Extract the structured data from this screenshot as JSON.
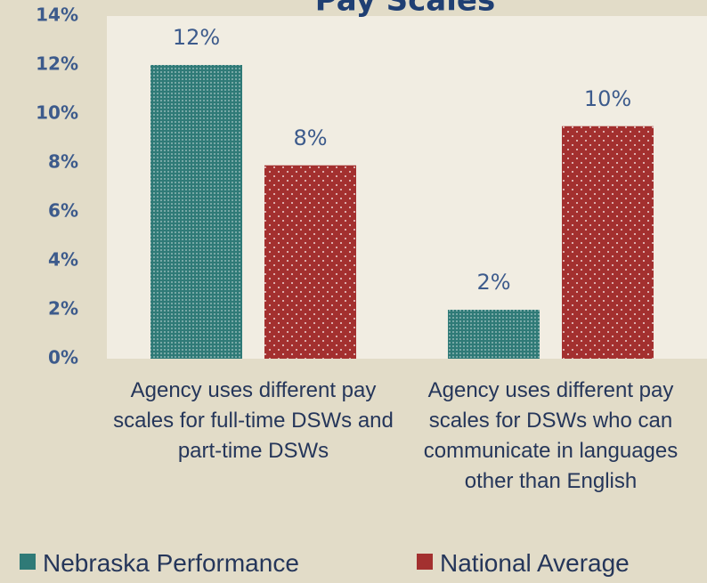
{
  "chart_data": {
    "type": "bar",
    "title": "Pay Scales",
    "categories": [
      "Agency uses different pay scales for full-time DSWs and part-time DSWs",
      "Agency uses different pay scales for DSWs who can communicate in languages other than English"
    ],
    "series": [
      {
        "name": "Nebraska Performance",
        "color": "#2f7a77",
        "values": [
          12,
          2
        ],
        "value_labels": [
          "12%",
          "2%"
        ]
      },
      {
        "name": "National Average",
        "color": "#a3302f",
        "values": [
          7.9,
          9.5
        ],
        "value_labels": [
          "8%",
          "10%"
        ]
      }
    ],
    "ylim": [
      0,
      14
    ],
    "yticks": [
      {
        "value": 0,
        "label": "0%"
      },
      {
        "value": 2,
        "label": "2%"
      },
      {
        "value": 4,
        "label": "4%"
      },
      {
        "value": 6,
        "label": "6%"
      },
      {
        "value": 8,
        "label": "8%"
      },
      {
        "value": 10,
        "label": "10%"
      },
      {
        "value": 12,
        "label": "12%"
      },
      {
        "value": 14,
        "label": "14%"
      }
    ],
    "legend": "bottom"
  }
}
